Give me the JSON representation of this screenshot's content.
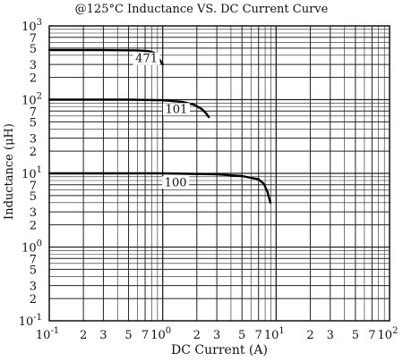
{
  "chart_data": {
    "type": "line",
    "title": "@125°C Inductance VS. DC Current Curve",
    "xlabel": "DC Current (A)",
    "ylabel": "Inductance (μH)",
    "x_scale": "log",
    "y_scale": "log",
    "xlim": [
      0.1,
      100
    ],
    "ylim": [
      0.1,
      1000
    ],
    "grid": true,
    "x_ticks": [
      {
        "value": 0.1,
        "base": "10",
        "exp": "-1"
      },
      {
        "value": 0.2,
        "label": "2"
      },
      {
        "value": 0.3,
        "label": "3"
      },
      {
        "value": 0.5,
        "label": "5"
      },
      {
        "value": 0.7,
        "label": "7"
      },
      {
        "value": 1,
        "base": "10",
        "exp": "0"
      },
      {
        "value": 2,
        "label": "2"
      },
      {
        "value": 3,
        "label": "3"
      },
      {
        "value": 5,
        "label": "5"
      },
      {
        "value": 7,
        "label": "7"
      },
      {
        "value": 10,
        "base": "10",
        "exp": "1"
      },
      {
        "value": 20,
        "label": "2"
      },
      {
        "value": 30,
        "label": "3"
      },
      {
        "value": 50,
        "label": "5"
      },
      {
        "value": 70,
        "label": "7"
      },
      {
        "value": 100,
        "base": "10",
        "exp": "2"
      }
    ],
    "y_ticks": [
      {
        "value": 0.1,
        "base": "10",
        "exp": "-1"
      },
      {
        "value": 0.2,
        "label": "2"
      },
      {
        "value": 0.3,
        "label": "3"
      },
      {
        "value": 0.5,
        "label": "5"
      },
      {
        "value": 0.7,
        "label": "7"
      },
      {
        "value": 1,
        "base": "10",
        "exp": "0"
      },
      {
        "value": 2,
        "label": "2"
      },
      {
        "value": 3,
        "label": "3"
      },
      {
        "value": 5,
        "label": "5"
      },
      {
        "value": 7,
        "label": "7"
      },
      {
        "value": 10,
        "base": "10",
        "exp": "1"
      },
      {
        "value": 20,
        "label": "2"
      },
      {
        "value": 30,
        "label": "3"
      },
      {
        "value": 50,
        "label": "5"
      },
      {
        "value": 70,
        "label": "7"
      },
      {
        "value": 100,
        "base": "10",
        "exp": "2"
      },
      {
        "value": 200,
        "label": "2"
      },
      {
        "value": 300,
        "label": "3"
      },
      {
        "value": 500,
        "label": "5"
      },
      {
        "value": 700,
        "label": "7"
      },
      {
        "value": 1000,
        "base": "10",
        "exp": "3"
      }
    ],
    "series": [
      {
        "name": "471",
        "label_at": [
          0.72,
          330
        ],
        "x": [
          0.1,
          0.3,
          0.6,
          0.75,
          0.85,
          0.9,
          0.95,
          1.0
        ],
        "y": [
          470,
          470,
          465,
          455,
          430,
          390,
          340,
          300
        ]
      },
      {
        "name": "101",
        "label_at": [
          1.32,
          68
        ],
        "x": [
          0.1,
          0.5,
          1.0,
          1.5,
          1.9,
          2.2,
          2.4,
          2.55
        ],
        "y": [
          100,
          100,
          98,
          93,
          85,
          75,
          66,
          58
        ]
      },
      {
        "name": "100",
        "label_at": [
          1.3,
          6.9
        ],
        "x": [
          0.1,
          1.0,
          3.0,
          5.0,
          7.0,
          7.8,
          8.4,
          8.9
        ],
        "y": [
          10,
          10,
          9.7,
          9.2,
          8.3,
          7.2,
          5.6,
          4.0
        ]
      }
    ]
  }
}
